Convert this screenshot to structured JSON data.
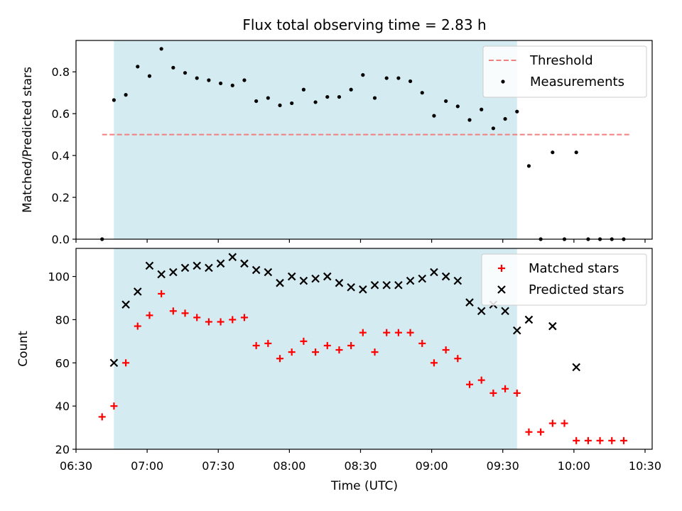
{
  "chart_data": {
    "title": "Flux total observing time = 2.83 h",
    "xlabel": "Time (UTC)",
    "x_ticks": [
      "06:30",
      "07:00",
      "07:30",
      "08:00",
      "08:30",
      "09:00",
      "09:30",
      "10:00",
      "10:30"
    ],
    "xlim": [
      "06:30",
      "10:33"
    ],
    "shaded_interval": [
      "06:46",
      "09:36"
    ],
    "shade_color": "#d4ebf1",
    "panels": [
      {
        "type": "scatter",
        "ylabel": "Matched/Predicted stars",
        "ylim": [
          0,
          0.95
        ],
        "y_ticks": [
          "0.0",
          "0.2",
          "0.4",
          "0.6",
          "0.8"
        ],
        "legend_position": "top-right",
        "threshold": {
          "name": "Threshold",
          "value": 0.5,
          "x_range": [
            "06:41",
            "10:24"
          ],
          "color": "#f08080"
        },
        "series": [
          {
            "name": "Measurements",
            "color": "#000000",
            "marker": "dot",
            "x": [
              "06:41",
              "06:46",
              "06:51",
              "06:56",
              "07:01",
              "07:06",
              "07:11",
              "07:16",
              "07:21",
              "07:26",
              "07:31",
              "07:36",
              "07:41",
              "07:46",
              "07:51",
              "07:56",
              "08:01",
              "08:06",
              "08:11",
              "08:16",
              "08:21",
              "08:26",
              "08:31",
              "08:36",
              "08:41",
              "08:46",
              "08:51",
              "08:56",
              "09:01",
              "09:06",
              "09:11",
              "09:16",
              "09:21",
              "09:26",
              "09:31",
              "09:36",
              "09:41",
              "09:46",
              "09:51",
              "09:56",
              "10:01",
              "10:06",
              "10:11",
              "10:16",
              "10:21"
            ],
            "y": [
              0.0,
              0.665,
              0.69,
              0.825,
              0.78,
              0.91,
              0.82,
              0.795,
              0.77,
              0.76,
              0.745,
              0.735,
              0.76,
              0.66,
              0.675,
              0.64,
              0.65,
              0.715,
              0.655,
              0.68,
              0.68,
              0.715,
              0.785,
              0.675,
              0.77,
              0.77,
              0.755,
              0.7,
              0.59,
              0.66,
              0.635,
              0.57,
              0.62,
              0.53,
              0.575,
              0.61,
              0.35,
              0.0,
              0.415,
              0.0,
              0.415,
              0.0,
              0.0,
              0.0,
              0.0
            ]
          }
        ]
      },
      {
        "type": "scatter",
        "ylabel": "Count",
        "ylim": [
          20,
          113
        ],
        "y_ticks": [
          "20",
          "40",
          "60",
          "80",
          "100"
        ],
        "legend_position": "top-right",
        "series": [
          {
            "name": "Matched stars",
            "color": "#ff0000",
            "marker": "plus",
            "x": [
              "06:41",
              "06:46",
              "06:51",
              "06:56",
              "07:01",
              "07:06",
              "07:11",
              "07:16",
              "07:21",
              "07:26",
              "07:31",
              "07:36",
              "07:41",
              "07:46",
              "07:51",
              "07:56",
              "08:01",
              "08:06",
              "08:11",
              "08:16",
              "08:21",
              "08:26",
              "08:31",
              "08:36",
              "08:41",
              "08:46",
              "08:51",
              "08:56",
              "09:01",
              "09:06",
              "09:11",
              "09:16",
              "09:21",
              "09:26",
              "09:31",
              "09:36",
              "09:41",
              "09:46",
              "09:51",
              "09:56",
              "10:01",
              "10:06",
              "10:11",
              "10:16",
              "10:21"
            ],
            "y": [
              35,
              40,
              60,
              77,
              82,
              92,
              84,
              83,
              81,
              79,
              79,
              80,
              81,
              68,
              69,
              62,
              65,
              70,
              65,
              68,
              66,
              68,
              74,
              65,
              74,
              74,
              74,
              69,
              60,
              66,
              62,
              50,
              52,
              46,
              48,
              46,
              28,
              28,
              32,
              32,
              24,
              24,
              24,
              24,
              24
            ]
          },
          {
            "name": "Predicted stars",
            "color": "#000000",
            "marker": "x",
            "x": [
              "06:46",
              "06:51",
              "06:56",
              "07:01",
              "07:06",
              "07:11",
              "07:16",
              "07:21",
              "07:26",
              "07:31",
              "07:36",
              "07:41",
              "07:46",
              "07:51",
              "07:56",
              "08:01",
              "08:06",
              "08:11",
              "08:16",
              "08:21",
              "08:26",
              "08:31",
              "08:36",
              "08:41",
              "08:46",
              "08:51",
              "08:56",
              "09:01",
              "09:06",
              "09:11",
              "09:16",
              "09:21",
              "09:26",
              "09:31",
              "09:36",
              "09:41",
              "09:51",
              "10:01"
            ],
            "y": [
              60,
              87,
              93,
              105,
              101,
              102,
              104,
              105,
              104,
              106,
              109,
              106,
              103,
              102,
              97,
              100,
              98,
              99,
              100,
              97,
              95,
              94,
              96,
              96,
              96,
              98,
              99,
              102,
              100,
              98,
              88,
              84,
              87,
              84,
              75,
              80,
              77,
              58
            ]
          }
        ]
      }
    ]
  }
}
